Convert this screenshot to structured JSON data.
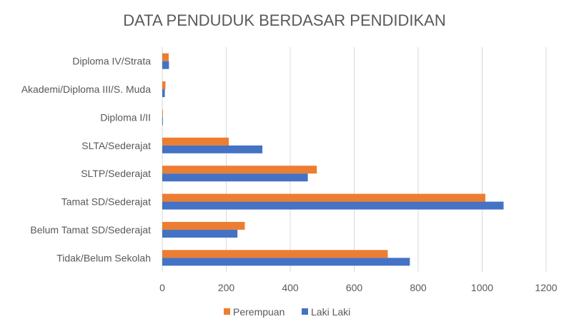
{
  "chart_data": {
    "type": "bar",
    "orientation": "horizontal",
    "title": "DATA PENDUDUK BERDASAR PENDIDIKAN",
    "categories": [
      "Tidak/Belum Sekolah",
      "Belum Tamat SD/Sederajat",
      "Tamat SD/Sederajat",
      "SLTP/Sederajat",
      "SLTA/Sederajat",
      "Diploma I/II",
      "Akademi/Diploma III/S. Muda",
      "Diploma IV/Strata"
    ],
    "series": [
      {
        "name": "Perempuan",
        "color": "#ED7D31",
        "values": [
          705,
          258,
          1010,
          483,
          208,
          2,
          10,
          20
        ]
      },
      {
        "name": "Laki Laki",
        "color": "#4472C4",
        "values": [
          774,
          235,
          1067,
          455,
          313,
          2,
          8,
          21
        ]
      }
    ],
    "xlim": [
      0,
      1200
    ],
    "xticks": [
      "0",
      "200",
      "400",
      "600",
      "800",
      "1000",
      "1200"
    ],
    "grid": true,
    "legend_position": "bottom"
  }
}
